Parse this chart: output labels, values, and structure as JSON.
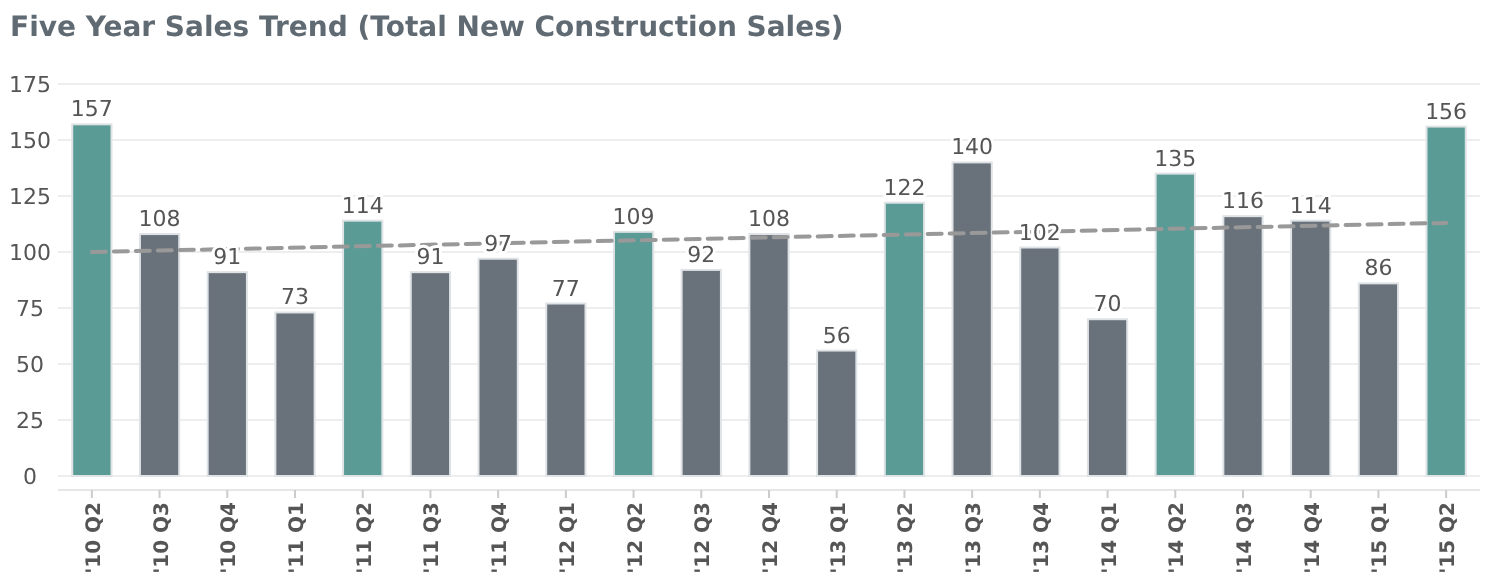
{
  "chart_data": {
    "type": "bar",
    "title": "Five Year Sales Trend (Total New Construction Sales)",
    "categories": [
      "'10 Q2",
      "'10 Q3",
      "'10 Q4",
      "'11 Q1",
      "'11 Q2",
      "'11 Q3",
      "'11 Q4",
      "'12 Q1",
      "'12 Q2",
      "'12 Q3",
      "'12 Q4",
      "'13 Q1",
      "'13 Q2",
      "'13 Q3",
      "'13 Q4",
      "'14 Q1",
      "'14 Q2",
      "'14 Q3",
      "'14 Q4",
      "'15 Q1",
      "'15 Q2"
    ],
    "series": [
      {
        "value_labels": [
          "157",
          "108",
          "91",
          "73",
          "114",
          "91",
          "97",
          "77",
          "109",
          "92",
          "108",
          "56",
          "122",
          "140",
          "102",
          "70",
          "135",
          "116",
          "114",
          "86",
          "156"
        ],
        "values": [
          157,
          108,
          91,
          73,
          114,
          91,
          97,
          77,
          109,
          92,
          108,
          56,
          122,
          140,
          102,
          70,
          135,
          116,
          114,
          86,
          156
        ],
        "colors": [
          "#5a9b95",
          "#69717a",
          "#69717a",
          "#69717a",
          "#5a9b95",
          "#69717a",
          "#69717a",
          "#69717a",
          "#5a9b95",
          "#69717a",
          "#69717a",
          "#69717a",
          "#5a9b95",
          "#69717a",
          "#69717a",
          "#69717a",
          "#5a9b95",
          "#69717a",
          "#69717a",
          "#69717a",
          "#5a9b95"
        ]
      },
      {
        "type": "line",
        "x": [
          "'10 Q2",
          "'15 Q2"
        ],
        "values": [
          100,
          113
        ],
        "color": "#999999",
        "line_style": "dashed",
        "marker": "none"
      }
    ],
    "ylim": [
      0,
      175
    ],
    "yticks": [
      0,
      25,
      50,
      75,
      100,
      125,
      150,
      175
    ],
    "grid": "y"
  }
}
